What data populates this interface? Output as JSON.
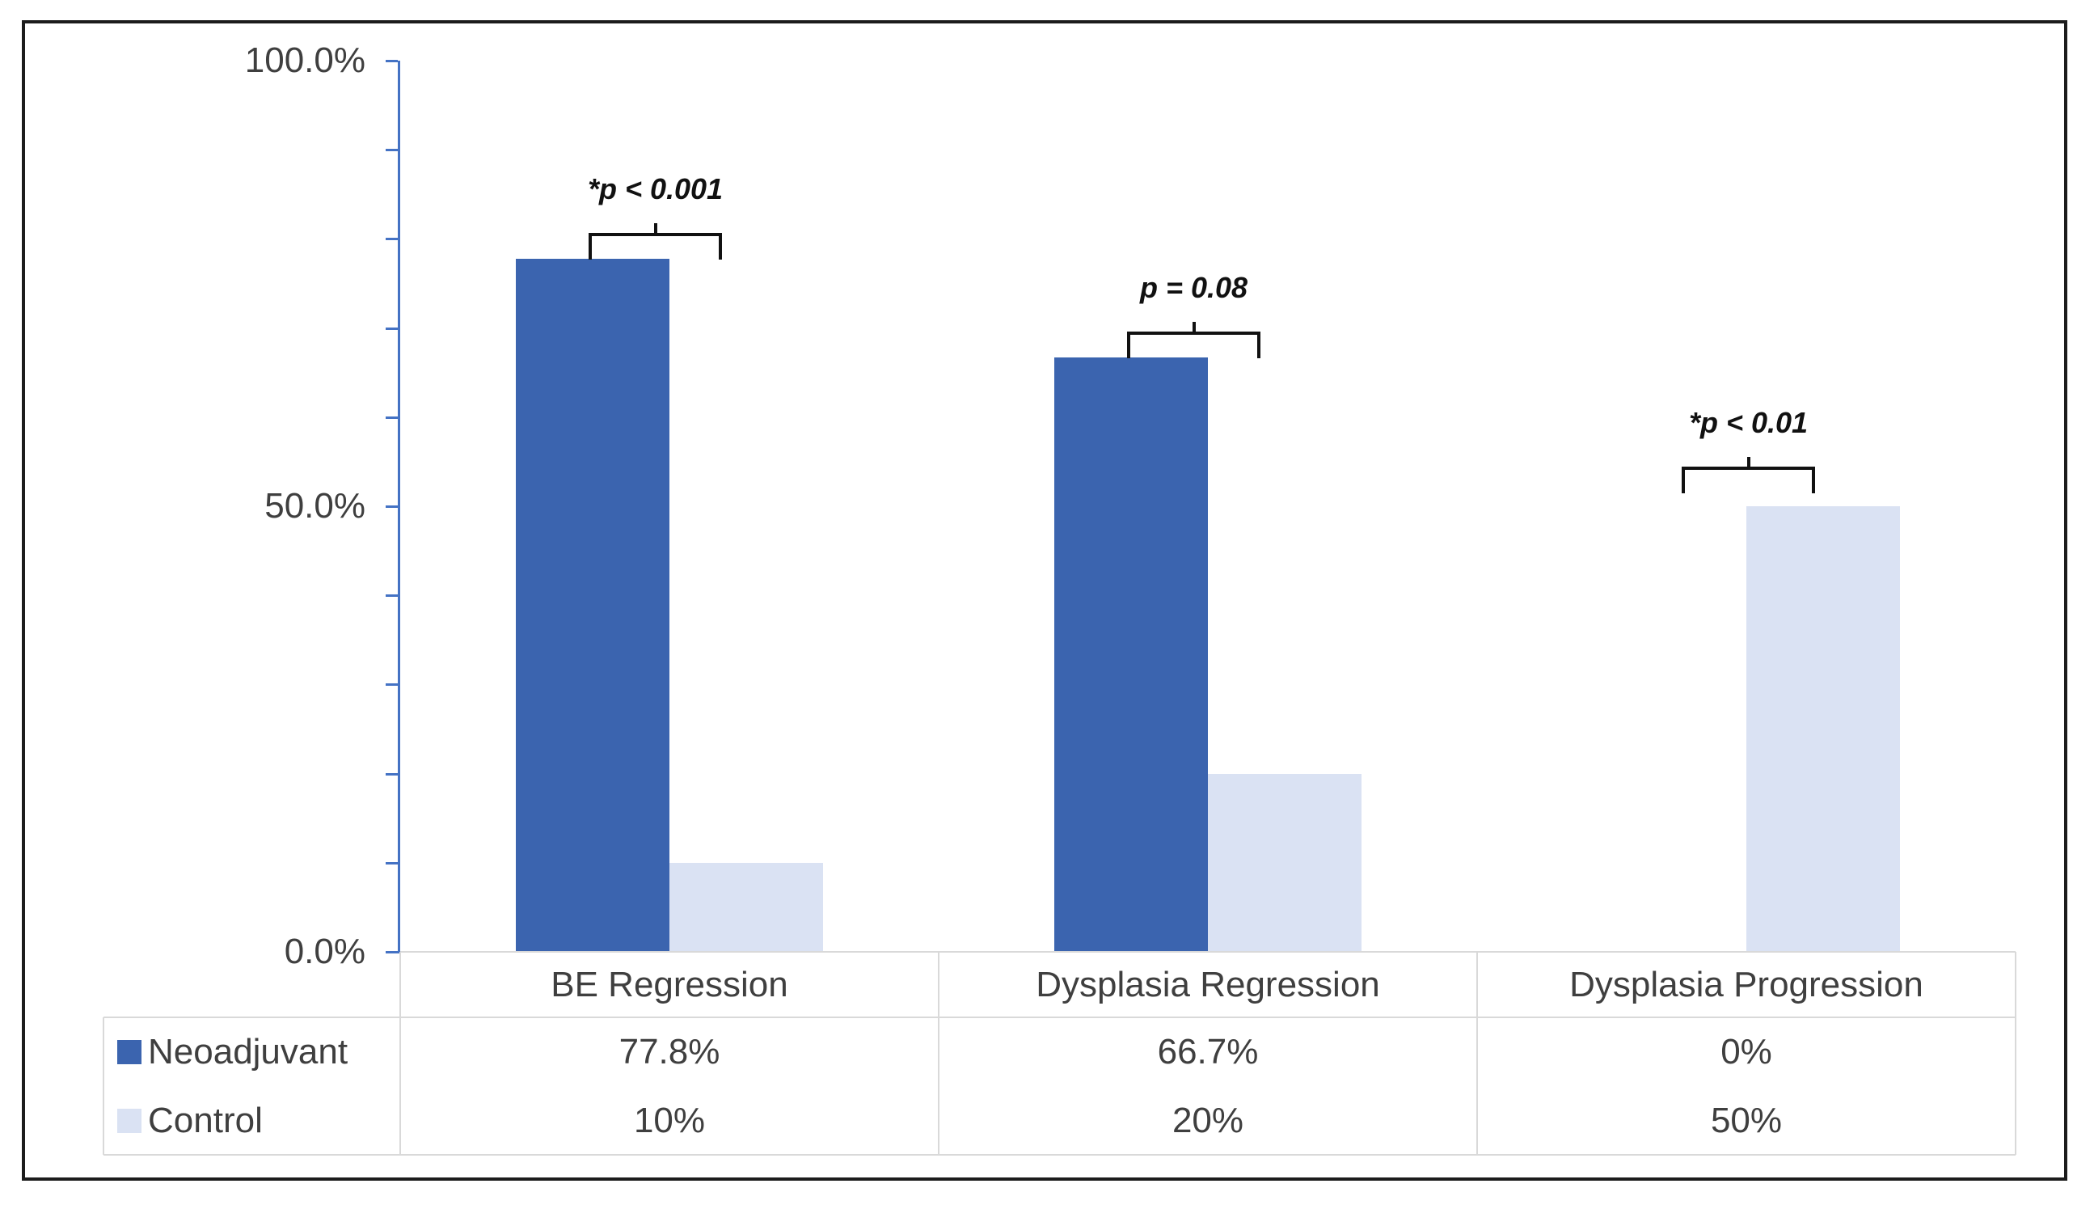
{
  "chart_data": {
    "type": "bar",
    "title": "",
    "categories": [
      "BE Regression",
      "Dysplasia Regression",
      "Dysplasia Progression"
    ],
    "series": [
      {
        "name": "Neoadjuvant",
        "color": "#3b64af",
        "values": [
          77.8,
          66.7,
          0
        ],
        "value_labels": [
          "77.8%",
          "66.7%",
          "0%"
        ]
      },
      {
        "name": "Control",
        "color": "#dae2f3",
        "values": [
          10,
          20,
          50
        ],
        "value_labels": [
          "10%",
          "20%",
          "50%"
        ]
      }
    ],
    "annotations": [
      {
        "category": "BE Regression",
        "text": "*p < 0.001"
      },
      {
        "category": "Dysplasia Regression",
        "text": "p = 0.08"
      },
      {
        "category": "Dysplasia Progression",
        "text": "*p < 0.01"
      }
    ],
    "y_axis": {
      "min": 0,
      "max": 100,
      "minor_tick_step": 10,
      "axis_color": "#4472c4",
      "tick_labels": [
        {
          "label": "0.0%",
          "value": 0
        },
        {
          "label": "50.0%",
          "value": 50
        },
        {
          "label": "100.0%",
          "value": 100
        }
      ]
    },
    "legend_position": "data-table-left",
    "grid": false,
    "data_table_shown": true
  },
  "colors": {
    "frame_border": "#1c1c1c",
    "table_line": "#d9d9d9",
    "text": "#3f3f3f",
    "annotation": "#111111",
    "background": "#ffffff"
  }
}
